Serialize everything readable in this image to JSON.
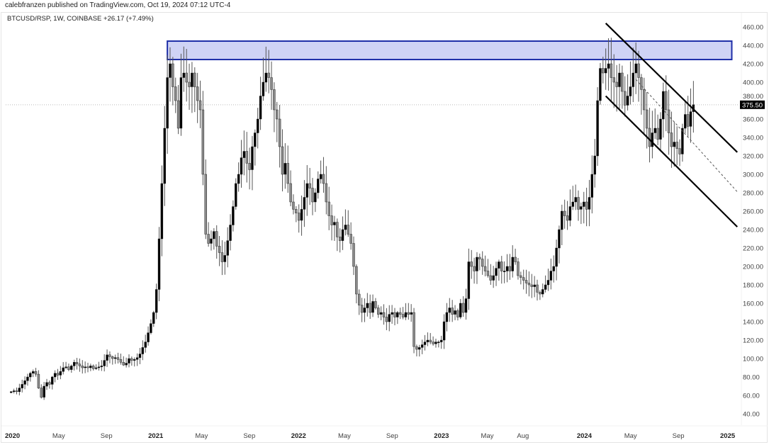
{
  "header": {
    "publisher_line": "calebfranzen published on TradingView.com, Oct 19, 2024 07:12 UTC-4",
    "symbol_line": "BTCUSD/RSP, 1W, COINBASE  +26.17 (+7.49%)"
  },
  "chart_data": {
    "type": "candlestick",
    "symbol": "BTCUSD/RSP",
    "interval": "1W",
    "exchange": "COINBASE",
    "change": "+26.17",
    "change_pct": "+7.49%",
    "last_price": "375.50",
    "ylim": [
      20,
      470
    ],
    "y_ticks": [
      "460.00",
      "440.00",
      "420.00",
      "400.00",
      "380.00",
      "360.00",
      "340.00",
      "320.00",
      "300.00",
      "280.00",
      "260.00",
      "240.00",
      "220.00",
      "200.00",
      "180.00",
      "160.00",
      "140.00",
      "120.00",
      "100.00",
      "80.00",
      "60.00",
      "40.00"
    ],
    "x_ticks": [
      {
        "label": "2020",
        "date": "2020-01-01",
        "major": true
      },
      {
        "label": "May",
        "date": "2020-05-01",
        "major": false
      },
      {
        "label": "Sep",
        "date": "2020-09-01",
        "major": false
      },
      {
        "label": "2021",
        "date": "2021-01-01",
        "major": true
      },
      {
        "label": "May",
        "date": "2021-05-01",
        "major": false
      },
      {
        "label": "Sep",
        "date": "2021-09-01",
        "major": false
      },
      {
        "label": "2022",
        "date": "2022-01-01",
        "major": true
      },
      {
        "label": "May",
        "date": "2022-05-01",
        "major": false
      },
      {
        "label": "Sep",
        "date": "2022-09-01",
        "major": false
      },
      {
        "label": "2023",
        "date": "2023-01-01",
        "major": true
      },
      {
        "label": "May",
        "date": "2023-05-01",
        "major": false
      },
      {
        "label": "Aug",
        "date": "2023-08-01",
        "major": false
      },
      {
        "label": "2024",
        "date": "2024-01-01",
        "major": true
      },
      {
        "label": "May",
        "date": "2024-05-01",
        "major": false
      },
      {
        "label": "Sep",
        "date": "2024-09-01",
        "major": false
      },
      {
        "label": "2025",
        "date": "2025-01-01",
        "major": true
      }
    ],
    "weekly_closes": [
      64,
      65,
      64,
      68,
      72,
      76,
      80,
      84,
      86,
      83,
      68,
      58,
      70,
      74,
      72,
      80,
      84,
      82,
      86,
      90,
      91,
      88,
      92,
      96,
      94,
      92,
      90,
      91,
      90,
      92,
      89,
      90,
      91,
      92,
      98,
      104,
      102,
      100,
      101,
      99,
      96,
      93,
      95,
      100,
      98,
      99,
      101,
      105,
      112,
      118,
      128,
      138,
      150,
      175,
      230,
      290,
      350,
      405,
      420,
      395,
      380,
      350,
      405,
      410,
      400,
      395,
      410,
      395,
      380,
      370,
      300,
      235,
      225,
      230,
      238,
      222,
      215,
      205,
      212,
      228,
      245,
      265,
      290,
      300,
      318,
      325,
      312,
      305,
      330,
      345,
      360,
      385,
      400,
      410,
      405,
      392,
      370,
      360,
      330,
      300,
      312,
      290,
      270,
      262,
      258,
      250,
      262,
      275,
      290,
      285,
      270,
      280,
      295,
      300,
      290,
      270,
      255,
      245,
      248,
      232,
      228,
      240,
      245,
      235,
      225,
      200,
      170,
      158,
      150,
      155,
      160,
      150,
      162,
      155,
      148,
      150,
      145,
      140,
      148,
      150,
      145,
      150,
      148,
      145,
      150,
      148,
      150,
      113,
      110,
      112,
      115,
      118,
      120,
      118,
      116,
      118,
      118,
      120,
      140,
      150,
      155,
      148,
      152,
      145,
      160,
      150,
      165,
      205,
      200,
      195,
      210,
      208,
      200,
      195,
      190,
      185,
      190,
      198,
      205,
      195,
      195,
      200,
      195,
      210,
      205,
      190,
      188,
      185,
      182,
      180,
      178,
      180,
      172,
      170,
      175,
      180,
      185,
      195,
      200,
      220,
      240,
      260,
      255,
      250,
      265,
      270,
      275,
      262,
      265,
      270,
      262,
      275,
      300,
      320,
      380,
      415,
      410,
      415,
      420,
      405,
      400,
      395,
      410,
      390,
      375,
      385,
      395,
      410,
      420,
      405,
      392,
      370,
      350,
      330,
      345,
      350,
      338,
      360,
      390,
      370,
      345,
      330,
      335,
      328,
      322,
      350,
      365,
      352,
      368,
      375.5
    ],
    "annotations": {
      "resistance_zone": {
        "from": "2021-02-08",
        "to": "2025-01-20",
        "low": 424.6,
        "high": 444.6,
        "fill": "#cfd3f5",
        "stroke": "#1f2fa8"
      },
      "channel_upper": {
        "from": [
          "2024-03-04",
          464
        ],
        "to": [
          "2025-02-03",
          324
        ]
      },
      "channel_lower": {
        "from": [
          "2024-03-04",
          385
        ],
        "to": [
          "2025-02-03",
          243
        ]
      },
      "channel_mid_dashed": {
        "from": [
          "2024-05-20",
          403
        ],
        "to": [
          "2025-02-03",
          281
        ]
      },
      "last_price_line": 375.5
    },
    "colors": {
      "up": "#000000",
      "down": "#8a8a8a",
      "wick": "#555555",
      "last_price_bg": "#000000"
    },
    "grid": false
  }
}
